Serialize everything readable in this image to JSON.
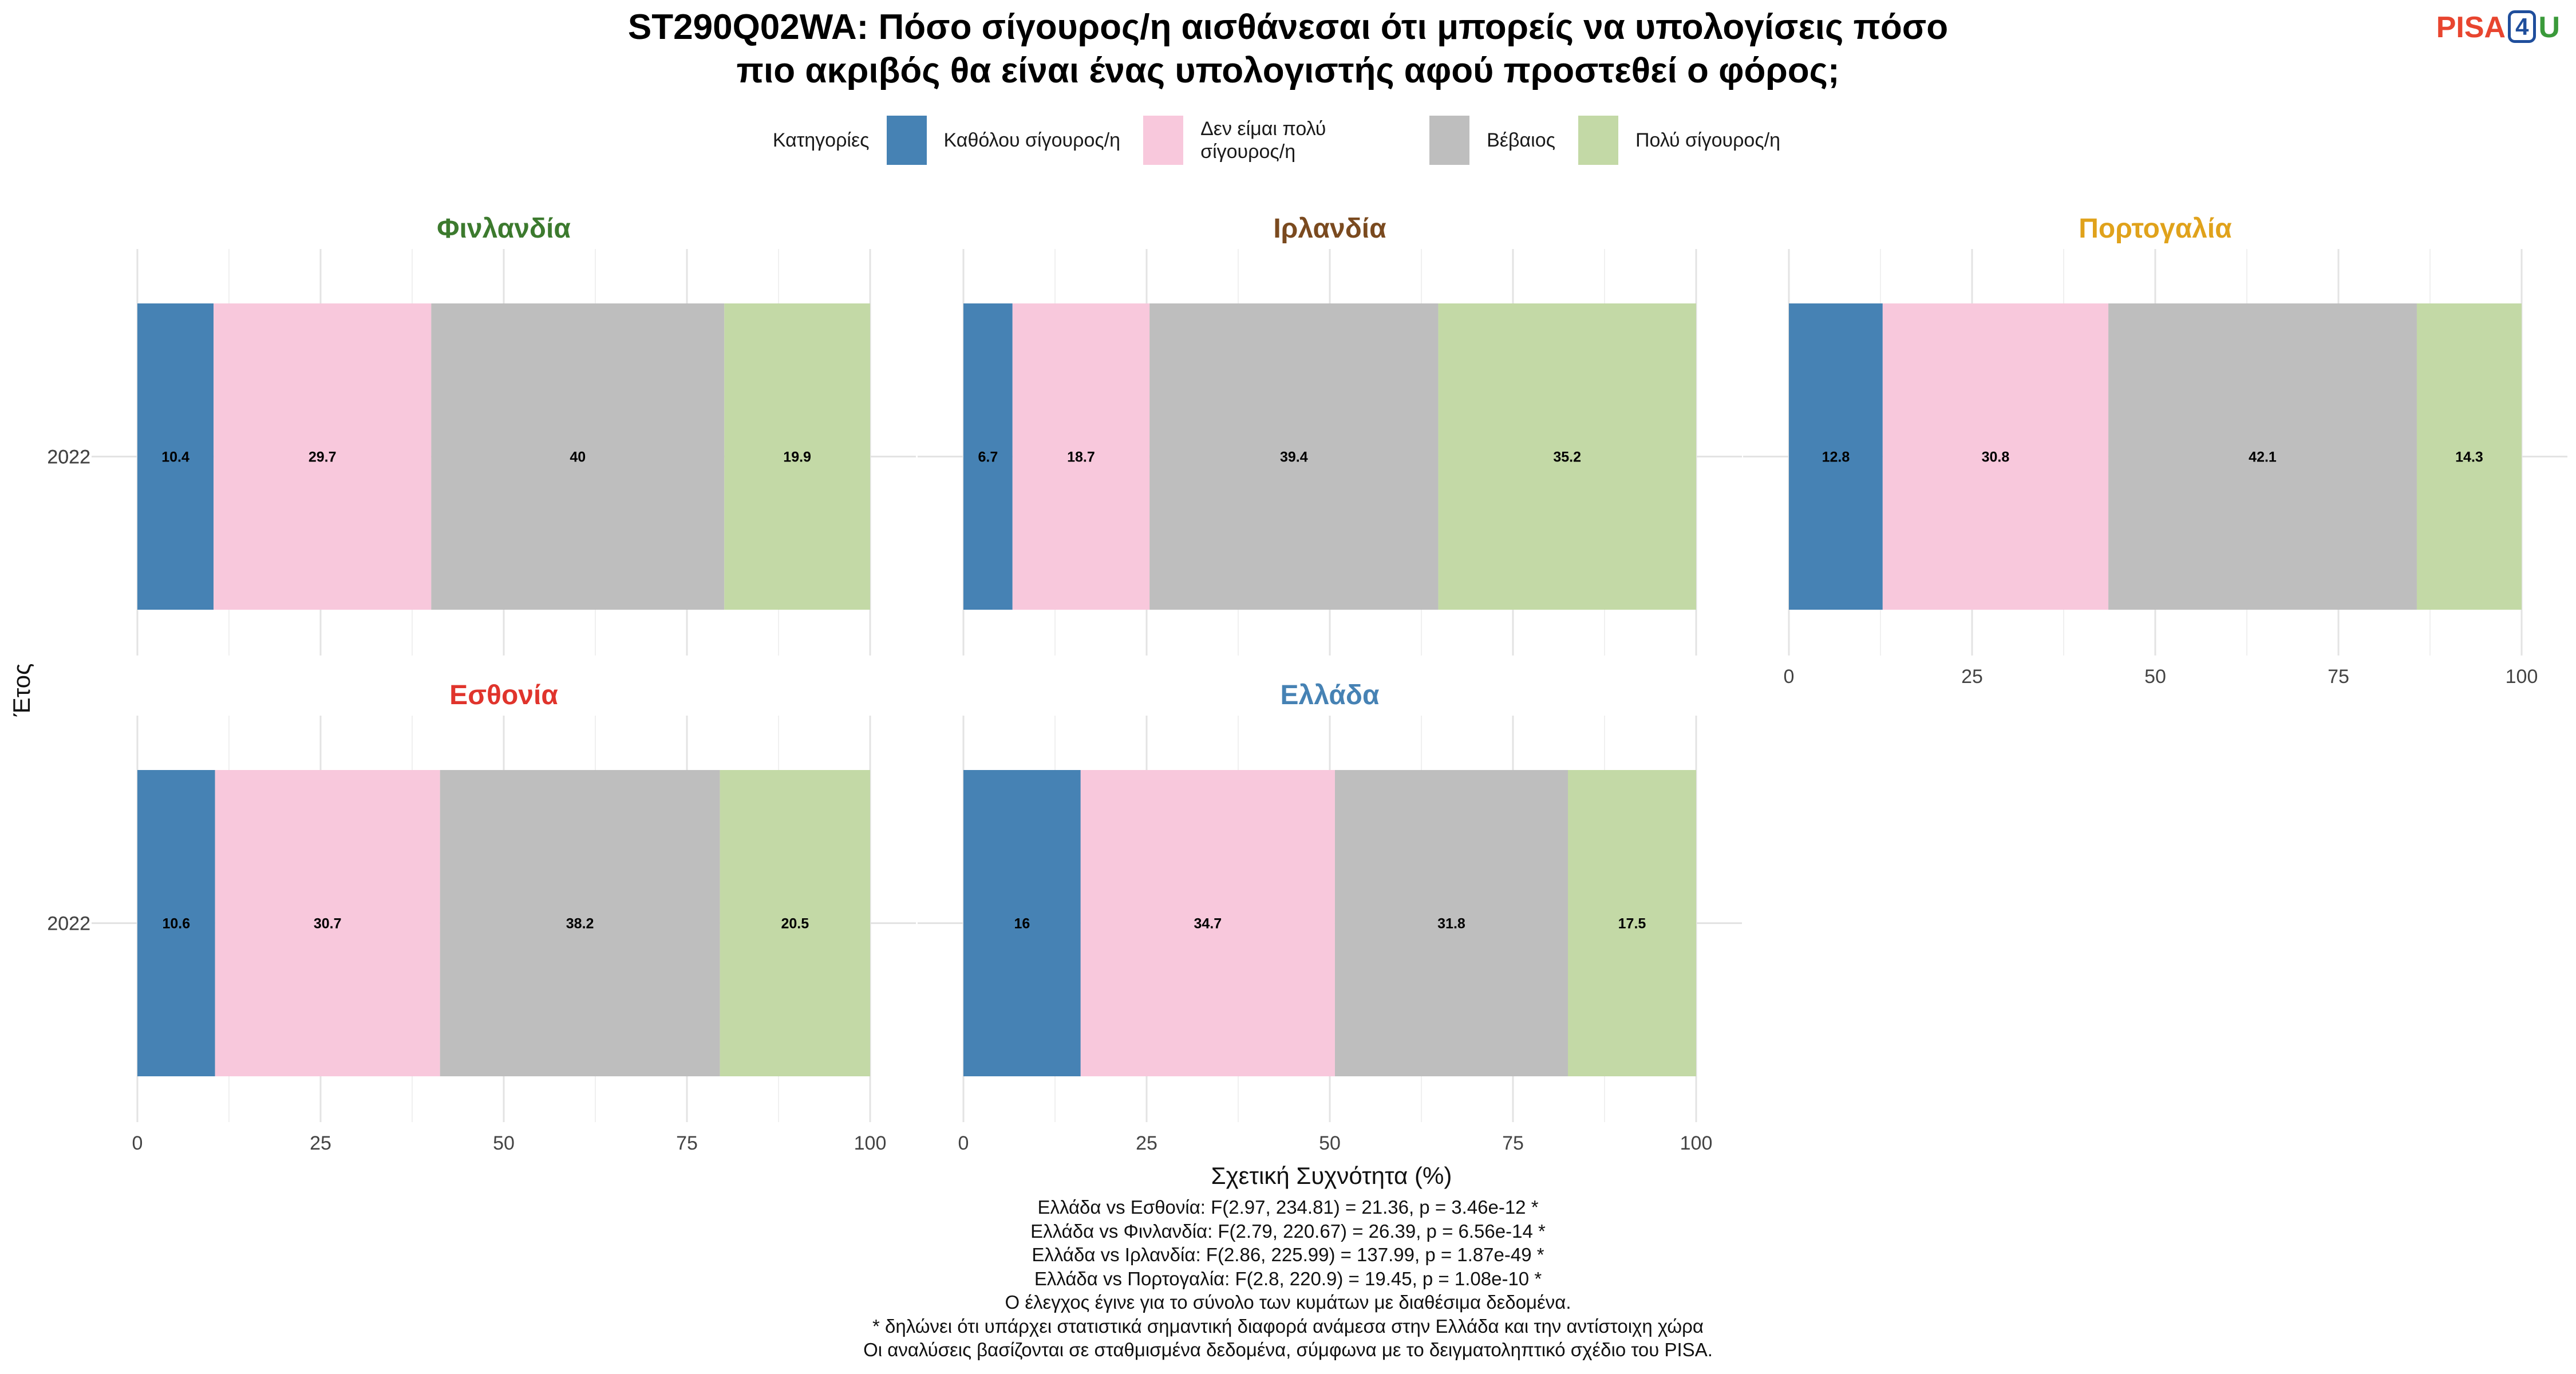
{
  "title_lines": [
    "ST290Q02WA: Πόσο σίγουρος/η αισθάνεσαι ότι μπορείς να υπολογίσεις πόσο",
    "πιο ακριβός θα είναι ένας υπολογιστής αφού προστεθεί ο φόρος;"
  ],
  "logo": {
    "text_a": "PISA",
    "text_b": "4",
    "text_c": "U"
  },
  "legend": {
    "title": "Κατηγορίες",
    "items": [
      {
        "label": "Καθόλου σίγουρος/η",
        "color": "#4682B4"
      },
      {
        "label": "Δεν είμαι πολύ σίγουρος/η",
        "color": "#F8C8DC"
      },
      {
        "label": "Βέβαιος",
        "color": "#BEBEBE"
      },
      {
        "label": "Πολύ σίγουρος/η",
        "color": "#C3D9A6"
      }
    ]
  },
  "chart_data": {
    "type": "bar",
    "orientation": "horizontal-stacked",
    "xlabel": "Σχετική Συχνότητα (%)",
    "ylabel": "Έτος",
    "xlim": [
      0,
      100
    ],
    "xticks": [
      0,
      25,
      50,
      75,
      100
    ],
    "categories": [
      "2022"
    ],
    "series_names": [
      "Καθόλου σίγουρος/η",
      "Δεν είμαι πολύ σίγουρος/η",
      "Βέβαιος",
      "Πολύ σίγουρος/η"
    ],
    "grid": true,
    "legend_position": "top",
    "panels": [
      {
        "country": "Φινλανδία",
        "color": "#3C7A2E",
        "year": "2022",
        "values": [
          10.4,
          29.7,
          40,
          19.9
        ]
      },
      {
        "country": "Ιρλανδία",
        "color": "#7A4A1F",
        "year": "2022",
        "values": [
          6.7,
          18.7,
          39.4,
          35.2
        ]
      },
      {
        "country": "Πορτογαλία",
        "color": "#E0A21B",
        "year": "2022",
        "values": [
          12.8,
          30.8,
          42.1,
          14.3
        ]
      },
      {
        "country": "Εσθονία",
        "color": "#E0342C",
        "year": "2022",
        "values": [
          10.6,
          30.7,
          38.2,
          20.5
        ]
      },
      {
        "country": "Ελλάδα",
        "color": "#4682B4",
        "year": "2022",
        "values": [
          16,
          34.7,
          31.8,
          17.5
        ]
      }
    ]
  },
  "caption_lines": [
    "Ελλάδα vs Εσθονία: F(2.97, 234.81) = 21.36, p = 3.46e-12 *",
    "Ελλάδα vs Φινλανδία: F(2.79, 220.67) = 26.39, p = 6.56e-14 *",
    "Ελλάδα vs Ιρλανδία: F(2.86, 225.99) = 137.99, p = 1.87e-49 *",
    "Ελλάδα vs Πορτογαλία: F(2.8, 220.9) = 19.45, p = 1.08e-10 *",
    "Ο έλεγχος έγινε για το σύνολο των κυμάτων με διαθέσιμα δεδομένα.",
    "* δηλώνει ότι υπάρχει στατιστικά σημαντική διαφορά ανάμεσα στην Ελλάδα και την αντίστοιχη χώρα",
    "Οι αναλύσεις βασίζονται σε σταθμισμένα δεδομένα, σύμφωνα με το δειγματοληπτικό σχέδιο του PISA."
  ]
}
